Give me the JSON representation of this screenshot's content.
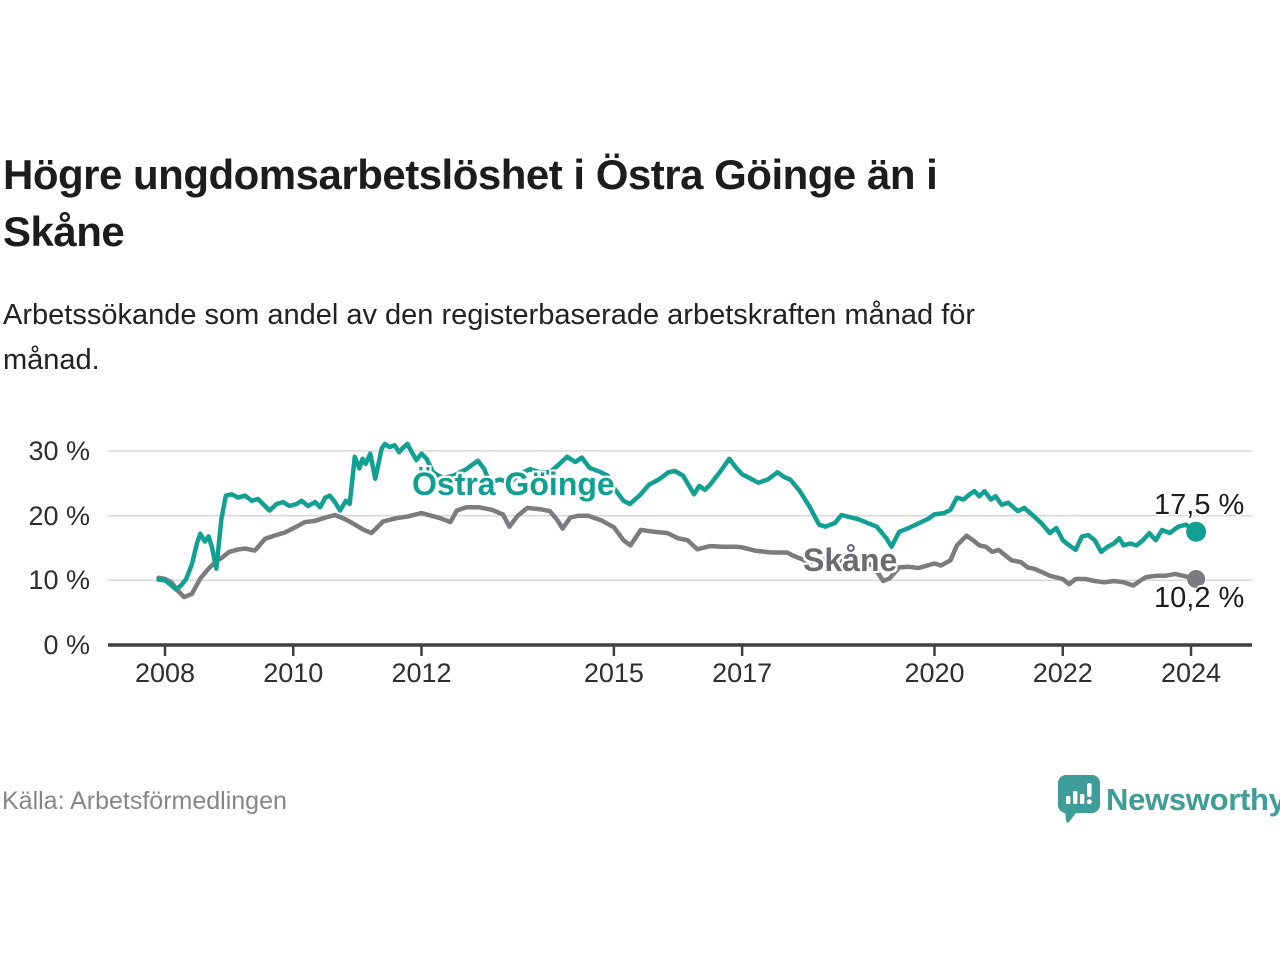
{
  "header": {
    "title": "Högre ungdomsarbetslöshet i Östra Göinge än i Skåne",
    "title_lines": [
      "Högre ungdomsarbetslöshet i Östra Göinge än i",
      "Skåne"
    ],
    "subtitle": "Arbetssökande som andel av den registerbaserade arbetskraften månad för månad.",
    "subtitle_lines": [
      "Arbetssökande som andel av den registerbaserade arbetskraften månad för",
      "månad."
    ]
  },
  "chart_data": {
    "type": "line",
    "title": "Högre ungdomsarbetslöshet i Östra Göinge än i Skåne",
    "unit": "%",
    "grid": "horizontal-only",
    "legend_position": "inline-labels",
    "ylim": [
      0,
      33
    ],
    "xlim": [
      2007.85,
      2024.95
    ],
    "y_ticks": [
      {
        "value": 30,
        "label": "30 %"
      },
      {
        "value": 20,
        "label": "20 %"
      },
      {
        "value": 10,
        "label": "10 %"
      },
      {
        "value": 0,
        "label": "0 %"
      }
    ],
    "x_ticks": [
      {
        "value": 2008,
        "label": "2008"
      },
      {
        "value": 2010,
        "label": "2010"
      },
      {
        "value": 2012,
        "label": "2012"
      },
      {
        "value": 2015,
        "label": "2015"
      },
      {
        "value": 2017,
        "label": "2017"
      },
      {
        "value": 2020,
        "label": "2020"
      },
      {
        "value": 2022,
        "label": "2022"
      },
      {
        "value": 2024,
        "label": "2024"
      }
    ],
    "series": [
      {
        "id": "skane",
        "name": "Skåne",
        "color": "#7b7c80",
        "label_color": "#6b6c71",
        "end_label": "10,2 %",
        "end_value": 10.2,
        "marker_radius": 9,
        "points": [
          [
            2007.9,
            10.4
          ],
          [
            2008.0,
            10.2
          ],
          [
            2008.1,
            9.7
          ],
          [
            2008.2,
            8.4
          ],
          [
            2008.3,
            7.4
          ],
          [
            2008.42,
            7.9
          ],
          [
            2008.55,
            10.3
          ],
          [
            2008.67,
            11.7
          ],
          [
            2008.78,
            12.8
          ],
          [
            2008.9,
            13.6
          ],
          [
            2009.0,
            14.4
          ],
          [
            2009.15,
            14.8
          ],
          [
            2009.25,
            14.9
          ],
          [
            2009.4,
            14.6
          ],
          [
            2009.56,
            16.4
          ],
          [
            2009.7,
            16.9
          ],
          [
            2009.87,
            17.4
          ],
          [
            2010.03,
            18.2
          ],
          [
            2010.18,
            19.0
          ],
          [
            2010.34,
            19.2
          ],
          [
            2010.5,
            19.7
          ],
          [
            2010.65,
            20.1
          ],
          [
            2010.8,
            19.5
          ],
          [
            2010.93,
            18.8
          ],
          [
            2011.1,
            17.8
          ],
          [
            2011.22,
            17.3
          ],
          [
            2011.4,
            19.1
          ],
          [
            2011.6,
            19.6
          ],
          [
            2011.8,
            19.9
          ],
          [
            2012.0,
            20.4
          ],
          [
            2012.15,
            20.0
          ],
          [
            2012.3,
            19.6
          ],
          [
            2012.45,
            19.0
          ],
          [
            2012.55,
            20.8
          ],
          [
            2012.7,
            21.3
          ],
          [
            2012.9,
            21.3
          ],
          [
            2013.1,
            20.9
          ],
          [
            2013.27,
            20.2
          ],
          [
            2013.37,
            18.3
          ],
          [
            2013.5,
            20.0
          ],
          [
            2013.65,
            21.2
          ],
          [
            2013.85,
            21.0
          ],
          [
            2014.0,
            20.7
          ],
          [
            2014.12,
            19.3
          ],
          [
            2014.2,
            18.0
          ],
          [
            2014.32,
            19.7
          ],
          [
            2014.45,
            20.0
          ],
          [
            2014.6,
            20.0
          ],
          [
            2014.8,
            19.3
          ],
          [
            2015.0,
            18.2
          ],
          [
            2015.15,
            16.2
          ],
          [
            2015.26,
            15.4
          ],
          [
            2015.42,
            17.8
          ],
          [
            2015.63,
            17.5
          ],
          [
            2015.84,
            17.3
          ],
          [
            2016.0,
            16.5
          ],
          [
            2016.15,
            16.2
          ],
          [
            2016.3,
            14.8
          ],
          [
            2016.5,
            15.3
          ],
          [
            2016.7,
            15.2
          ],
          [
            2016.9,
            15.2
          ],
          [
            2017.0,
            15.1
          ],
          [
            2017.2,
            14.6
          ],
          [
            2017.45,
            14.3
          ],
          [
            2017.7,
            14.3
          ],
          [
            2017.8,
            13.8
          ],
          [
            2017.95,
            13.2
          ],
          [
            2018.05,
            12.6
          ],
          [
            2018.15,
            13.3
          ],
          [
            2018.35,
            13.1
          ],
          [
            2018.55,
            13.0
          ],
          [
            2018.75,
            13.0
          ],
          [
            2018.9,
            12.8
          ],
          [
            2019.05,
            12.2
          ],
          [
            2019.2,
            9.9
          ],
          [
            2019.3,
            10.3
          ],
          [
            2019.45,
            12.0
          ],
          [
            2019.6,
            12.1
          ],
          [
            2019.75,
            11.9
          ],
          [
            2020.0,
            12.6
          ],
          [
            2020.1,
            12.3
          ],
          [
            2020.25,
            13.1
          ],
          [
            2020.35,
            15.4
          ],
          [
            2020.5,
            16.9
          ],
          [
            2020.6,
            16.2
          ],
          [
            2020.7,
            15.4
          ],
          [
            2020.8,
            15.2
          ],
          [
            2020.9,
            14.4
          ],
          [
            2021.0,
            14.7
          ],
          [
            2021.1,
            13.9
          ],
          [
            2021.2,
            13.1
          ],
          [
            2021.35,
            12.8
          ],
          [
            2021.45,
            12.0
          ],
          [
            2021.55,
            11.8
          ],
          [
            2021.67,
            11.3
          ],
          [
            2021.8,
            10.7
          ],
          [
            2022.0,
            10.2
          ],
          [
            2022.1,
            9.4
          ],
          [
            2022.2,
            10.2
          ],
          [
            2022.35,
            10.2
          ],
          [
            2022.5,
            9.9
          ],
          [
            2022.65,
            9.7
          ],
          [
            2022.8,
            9.9
          ],
          [
            2022.95,
            9.7
          ],
          [
            2023.1,
            9.2
          ],
          [
            2023.2,
            9.9
          ],
          [
            2023.3,
            10.5
          ],
          [
            2023.45,
            10.7
          ],
          [
            2023.6,
            10.7
          ],
          [
            2023.75,
            11.0
          ],
          [
            2023.88,
            10.7
          ],
          [
            2024.0,
            10.4
          ],
          [
            2024.08,
            10.2
          ]
        ]
      },
      {
        "id": "ostra-goinge",
        "name": "Östra Göinge",
        "color": "#12a093",
        "label_color": "#0fa092",
        "end_label": "17,5 %",
        "end_value": 17.5,
        "marker_radius": 10,
        "points": [
          [
            2007.9,
            10.1
          ],
          [
            2008.0,
            10.0
          ],
          [
            2008.08,
            9.4
          ],
          [
            2008.17,
            8.6
          ],
          [
            2008.25,
            9.2
          ],
          [
            2008.33,
            10.2
          ],
          [
            2008.42,
            12.5
          ],
          [
            2008.5,
            15.8
          ],
          [
            2008.55,
            17.2
          ],
          [
            2008.62,
            16.0
          ],
          [
            2008.68,
            16.8
          ],
          [
            2008.73,
            15.2
          ],
          [
            2008.8,
            11.8
          ],
          [
            2008.88,
            19.5
          ],
          [
            2008.95,
            23.1
          ],
          [
            2009.04,
            23.3
          ],
          [
            2009.14,
            22.8
          ],
          [
            2009.25,
            23.1
          ],
          [
            2009.35,
            22.3
          ],
          [
            2009.45,
            22.6
          ],
          [
            2009.56,
            21.5
          ],
          [
            2009.63,
            20.8
          ],
          [
            2009.74,
            21.8
          ],
          [
            2009.84,
            22.1
          ],
          [
            2009.94,
            21.5
          ],
          [
            2010.05,
            21.8
          ],
          [
            2010.13,
            22.3
          ],
          [
            2010.23,
            21.5
          ],
          [
            2010.34,
            22.1
          ],
          [
            2010.42,
            21.3
          ],
          [
            2010.5,
            22.8
          ],
          [
            2010.57,
            23.1
          ],
          [
            2010.65,
            22.1
          ],
          [
            2010.73,
            20.8
          ],
          [
            2010.82,
            22.3
          ],
          [
            2010.88,
            21.8
          ],
          [
            2010.96,
            29.1
          ],
          [
            2011.03,
            27.3
          ],
          [
            2011.08,
            28.8
          ],
          [
            2011.13,
            28.0
          ],
          [
            2011.2,
            29.6
          ],
          [
            2011.28,
            25.7
          ],
          [
            2011.38,
            30.4
          ],
          [
            2011.43,
            31.1
          ],
          [
            2011.5,
            30.6
          ],
          [
            2011.58,
            30.9
          ],
          [
            2011.65,
            29.8
          ],
          [
            2011.7,
            30.4
          ],
          [
            2011.78,
            31.1
          ],
          [
            2011.85,
            29.8
          ],
          [
            2011.92,
            28.6
          ],
          [
            2012.0,
            29.6
          ],
          [
            2012.08,
            28.8
          ],
          [
            2012.18,
            26.7
          ],
          [
            2012.33,
            25.8
          ],
          [
            2012.5,
            26.2
          ],
          [
            2012.7,
            27.2
          ],
          [
            2012.88,
            28.5
          ],
          [
            2012.98,
            27.2
          ],
          [
            2013.06,
            25.1
          ],
          [
            2013.22,
            25.6
          ],
          [
            2013.37,
            25.1
          ],
          [
            2013.53,
            26.4
          ],
          [
            2013.69,
            27.2
          ],
          [
            2013.84,
            26.7
          ],
          [
            2014.0,
            26.7
          ],
          [
            2014.15,
            28.0
          ],
          [
            2014.27,
            29.1
          ],
          [
            2014.4,
            28.3
          ],
          [
            2014.5,
            29.0
          ],
          [
            2014.62,
            27.4
          ],
          [
            2014.78,
            26.8
          ],
          [
            2014.9,
            26.2
          ],
          [
            2015.0,
            24.3
          ],
          [
            2015.15,
            22.3
          ],
          [
            2015.25,
            21.8
          ],
          [
            2015.4,
            23.1
          ],
          [
            2015.55,
            24.8
          ],
          [
            2015.7,
            25.6
          ],
          [
            2015.85,
            26.7
          ],
          [
            2015.95,
            26.9
          ],
          [
            2016.08,
            26.2
          ],
          [
            2016.25,
            23.3
          ],
          [
            2016.33,
            24.6
          ],
          [
            2016.42,
            24.0
          ],
          [
            2016.5,
            24.8
          ],
          [
            2016.65,
            26.7
          ],
          [
            2016.8,
            28.8
          ],
          [
            2016.9,
            27.5
          ],
          [
            2017.0,
            26.4
          ],
          [
            2017.1,
            25.9
          ],
          [
            2017.25,
            25.1
          ],
          [
            2017.4,
            25.6
          ],
          [
            2017.55,
            26.7
          ],
          [
            2017.67,
            25.9
          ],
          [
            2017.75,
            25.6
          ],
          [
            2017.9,
            23.8
          ],
          [
            2018.05,
            21.4
          ],
          [
            2018.2,
            18.6
          ],
          [
            2018.3,
            18.3
          ],
          [
            2018.45,
            18.9
          ],
          [
            2018.55,
            20.1
          ],
          [
            2018.67,
            19.8
          ],
          [
            2018.8,
            19.5
          ],
          [
            2018.95,
            18.9
          ],
          [
            2019.1,
            18.3
          ],
          [
            2019.25,
            16.5
          ],
          [
            2019.33,
            15.2
          ],
          [
            2019.45,
            17.5
          ],
          [
            2019.6,
            18.1
          ],
          [
            2019.75,
            18.8
          ],
          [
            2019.9,
            19.5
          ],
          [
            2020.0,
            20.2
          ],
          [
            2020.15,
            20.4
          ],
          [
            2020.25,
            20.9
          ],
          [
            2020.35,
            22.8
          ],
          [
            2020.45,
            22.5
          ],
          [
            2020.55,
            23.3
          ],
          [
            2020.62,
            23.8
          ],
          [
            2020.7,
            23.0
          ],
          [
            2020.78,
            23.8
          ],
          [
            2020.88,
            22.5
          ],
          [
            2020.95,
            23.0
          ],
          [
            2021.05,
            21.7
          ],
          [
            2021.15,
            22.0
          ],
          [
            2021.3,
            20.7
          ],
          [
            2021.4,
            21.2
          ],
          [
            2021.55,
            19.9
          ],
          [
            2021.67,
            18.8
          ],
          [
            2021.8,
            17.3
          ],
          [
            2021.9,
            18.1
          ],
          [
            2022.0,
            16.2
          ],
          [
            2022.1,
            15.4
          ],
          [
            2022.2,
            14.7
          ],
          [
            2022.3,
            16.8
          ],
          [
            2022.4,
            17.0
          ],
          [
            2022.5,
            16.2
          ],
          [
            2022.6,
            14.4
          ],
          [
            2022.7,
            15.2
          ],
          [
            2022.8,
            15.7
          ],
          [
            2022.88,
            16.5
          ],
          [
            2022.95,
            15.4
          ],
          [
            2023.05,
            15.7
          ],
          [
            2023.15,
            15.4
          ],
          [
            2023.25,
            16.2
          ],
          [
            2023.35,
            17.3
          ],
          [
            2023.45,
            16.2
          ],
          [
            2023.55,
            17.8
          ],
          [
            2023.67,
            17.3
          ],
          [
            2023.8,
            18.3
          ],
          [
            2023.92,
            18.6
          ],
          [
            2024.0,
            18.1
          ],
          [
            2024.08,
            17.5
          ]
        ]
      }
    ]
  },
  "footer": {
    "source": "Källa: Arbetsförmedlingen",
    "brand": "Newsworthy"
  },
  "colors": {
    "background": "#ffffff",
    "title": "#1c1c1c",
    "subtitle": "#222222",
    "axis": "#3f3f3f",
    "gridline": "#d8d8d8",
    "tick_text": "#2e2e2e",
    "ostra_goinge": "#12a093",
    "skane": "#7b7c80",
    "end_label_text": "#1d1d1d",
    "source_text": "#85868c",
    "brand_teal": "#3e9d99"
  }
}
